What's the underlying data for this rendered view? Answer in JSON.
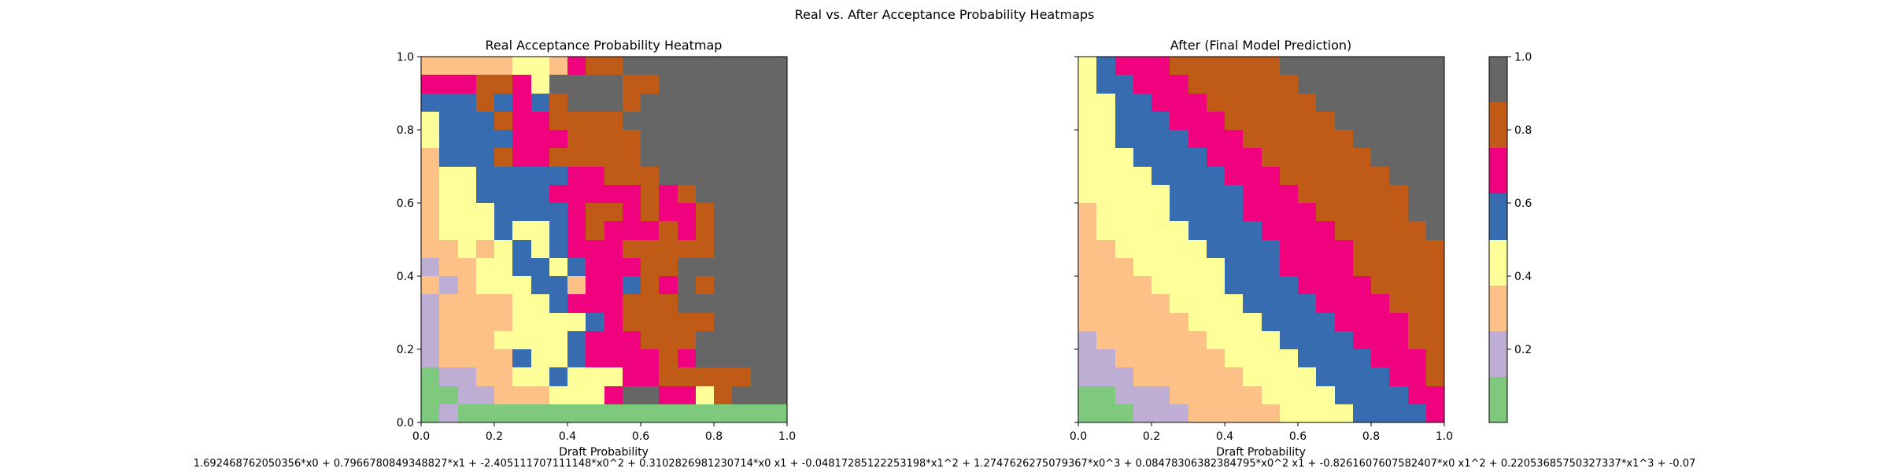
{
  "figure": {
    "suptitle": "Real vs. After Acceptance Probability Heatmaps",
    "formula": "1.692468762050356*x0 + 0.7966780849348827*x1 + -2.405111707111148*x0^2 + 0.3102826981230714*x0 x1 + -0.04817285122253198*x1^2 + 1.2747626275079367*x0^3 + 0.08478306382384795*x0^2 x1 + -0.8261607607582407*x0 x1^2 + 0.22053685750327337*x1^3 + -0.07"
  },
  "colorbar": {
    "colors": [
      "#7fc97f",
      "#beaed4",
      "#fdc086",
      "#ffff99",
      "#386cb0",
      "#f0027f",
      "#bf5b17",
      "#666666"
    ],
    "ticks": [
      "0.2",
      "0.4",
      "0.6",
      "0.8",
      "1.0"
    ],
    "tick_values": [
      0.2,
      0.4,
      0.6,
      0.8,
      1.0
    ],
    "range": [
      0.0,
      1.0
    ]
  },
  "chart_data": [
    {
      "type": "heatmap",
      "title": "Real Acceptance Probability Heatmap",
      "xlabel": "Draft Probability",
      "ylabel": "",
      "xlim": [
        0,
        1
      ],
      "ylim": [
        0,
        1
      ],
      "xticks": [
        "0.0",
        "0.2",
        "0.4",
        "0.6",
        "0.8",
        "1.0"
      ],
      "yticks": [
        "0.0",
        "0.2",
        "0.4",
        "0.6",
        "0.8",
        "1.0"
      ],
      "grid": "20x20 cells, rows listed top (y=1.0) to bottom (y=0.0)",
      "values": [
        "22222332566777777777",
        "55566537777667777777",
        "44464546777677777777",
        "34446556666777777777",
        "34444555666677777777",
        "24446556666677777777",
        "23344444556667777777",
        "23344445555565677777",
        "23334444566565567777",
        "23334334565556567777",
        "22323434555666667777",
        "12233443455566777777",
        "21233344255465767777",
        "12222334555666777777",
        "12222333345666667777",
        "12223333455566677777",
        "12222433455556577777",
        "01122334333556666677",
        "00112223335775536777",
        "01000000000000000000"
      ],
      "legend": "colorbar-right"
    },
    {
      "type": "heatmap",
      "title": "After (Final Model Prediction)",
      "xlabel": "Draft Probability",
      "ylabel": "",
      "xlim": [
        0,
        1
      ],
      "ylim": [
        0,
        1
      ],
      "xticks": [
        "0.0",
        "0.2",
        "0.4",
        "0.6",
        "0.8",
        "1.0"
      ],
      "yticks": [],
      "grid": "20x20 cells, rows listed top (y=1.0) to bottom (y=0.0)",
      "values": [
        "34555666666777777777",
        "34455566666677777777",
        "33445556666667777777",
        "33444555666666777777",
        "33444455566666677777",
        "33344445556666667777",
        "33334444555666666777",
        "33333444455566666677",
        "23333444455556666677",
        "23333344445555666667",
        "22333334444555566666",
        "22233333444555566666",
        "22223333444455556666",
        "22222333344445555666",
        "22222233334444555566",
        "12222223333444455566",
        "11222222333344445556",
        "11122222233334444556",
        "00111222223333444455",
        "00011122222333344445"
      ],
      "legend": "colorbar-right"
    }
  ]
}
